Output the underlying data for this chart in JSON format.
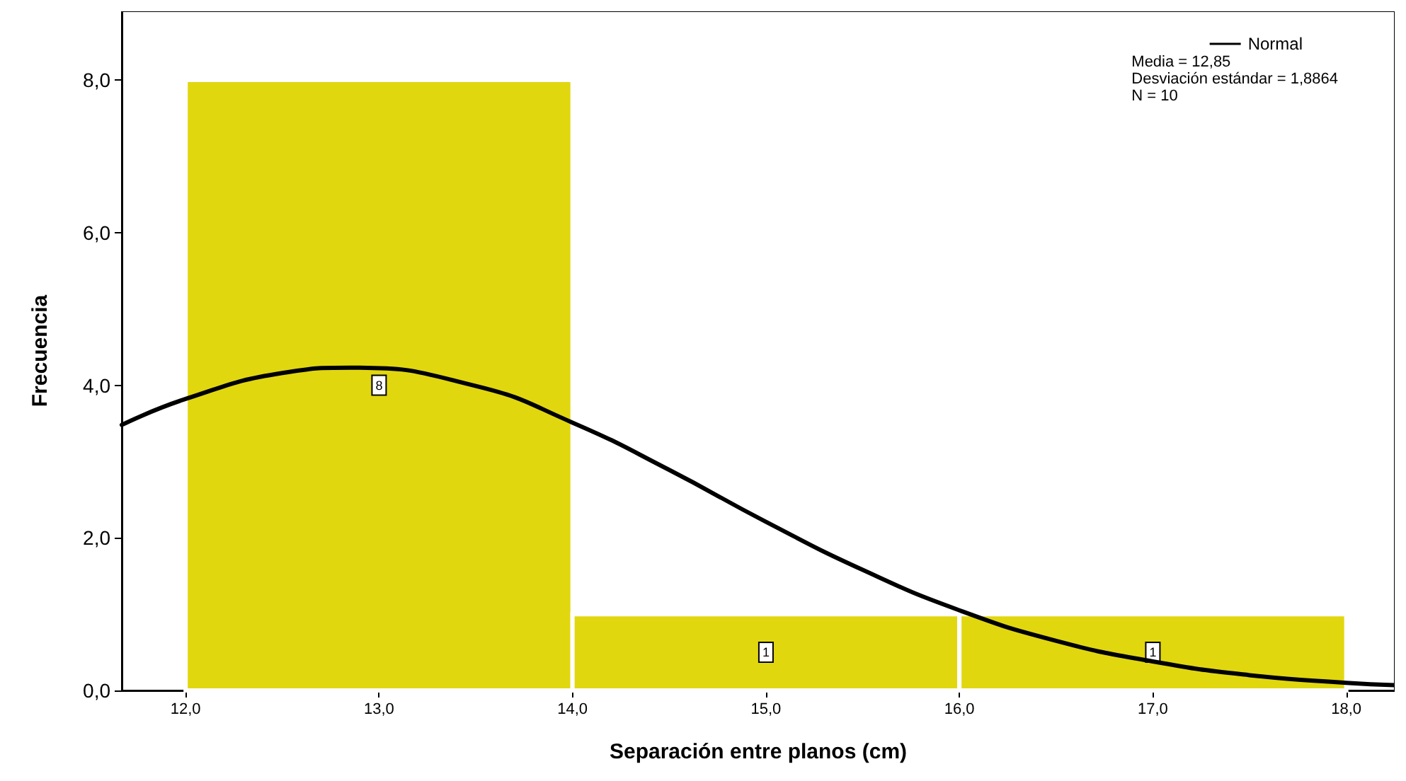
{
  "chart_data": {
    "type": "histogram",
    "xlabel": "Separación entre planos (cm)",
    "ylabel": "Frecuencia",
    "bins": [
      12,
      14,
      16,
      18
    ],
    "values": [
      8,
      1,
      1
    ],
    "color": "#e1d70f",
    "value_labels": [
      "8",
      "1",
      "1"
    ],
    "series": [
      {
        "name": "Normal",
        "type": "line",
        "color": "#000000",
        "marker": "none",
        "line_style": "solid",
        "x": [
          11.67,
          12,
          12.5,
          12.85,
          13.5,
          14,
          14.5,
          15,
          15.5,
          16,
          16.5,
          17,
          17.5,
          18,
          18.25
        ],
        "values": [
          3.48,
          3.82,
          4.16,
          4.23,
          3.99,
          3.51,
          2.89,
          2.21,
          1.58,
          1.05,
          0.65,
          0.38,
          0.2,
          0.1,
          0.07
        ]
      }
    ],
    "annotations": [
      "Media = 12,85",
      "Desviación estándar = 1,8864",
      "N = 10"
    ],
    "xlim": [
      11.67,
      18.25
    ],
    "ylim": [
      0,
      8.9
    ],
    "xticks": [
      {
        "value": 12,
        "label": "12,0"
      },
      {
        "value": 13,
        "label": "13,0"
      },
      {
        "value": 14,
        "label": "14,0"
      },
      {
        "value": 15,
        "label": "15,0"
      },
      {
        "value": 16,
        "label": "16,0"
      },
      {
        "value": 17,
        "label": "17,0"
      },
      {
        "value": 18,
        "label": "18,0"
      }
    ],
    "yticks": [
      {
        "value": 0,
        "label": "0,0"
      },
      {
        "value": 2,
        "label": "2,0"
      },
      {
        "value": 4,
        "label": "4,0"
      },
      {
        "value": 6,
        "label": "6,0"
      },
      {
        "value": 8,
        "label": "8,0"
      }
    ],
    "grid": false,
    "legend": "top right"
  }
}
